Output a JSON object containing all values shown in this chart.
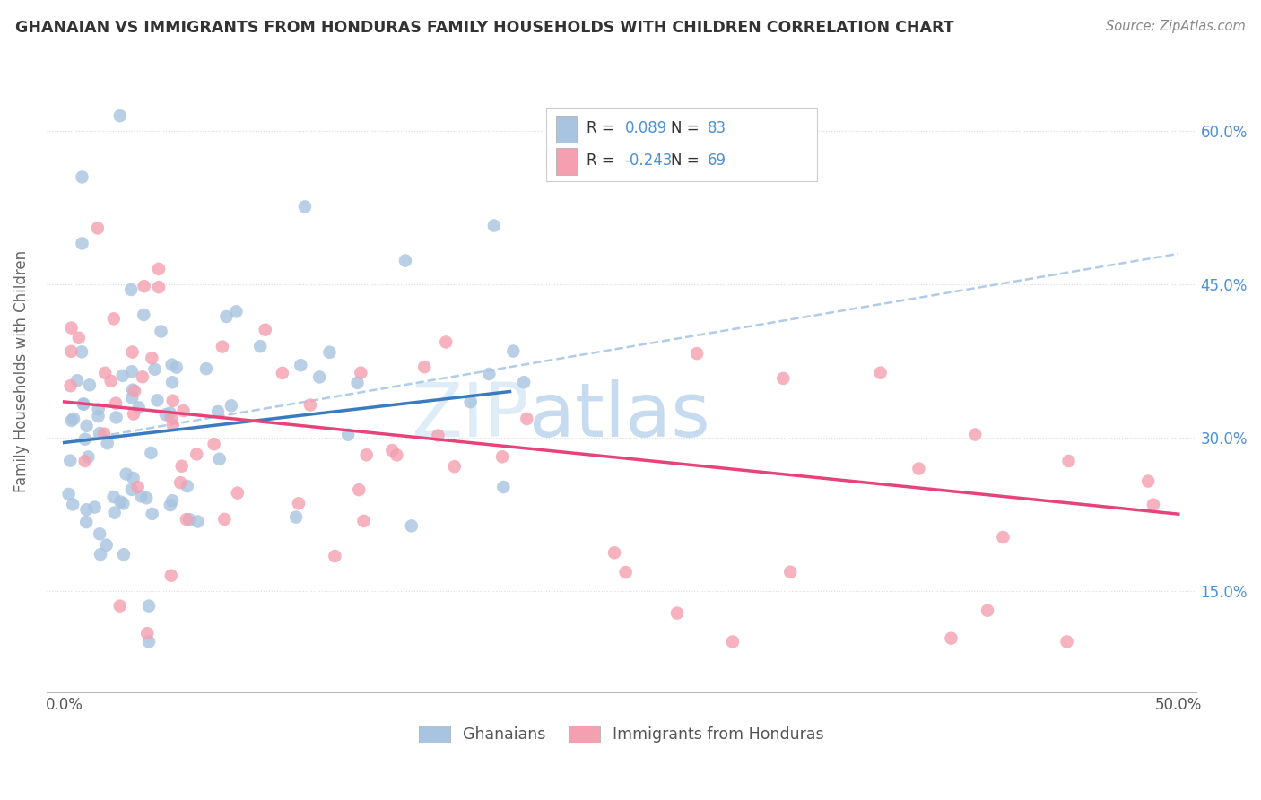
{
  "title": "GHANAIAN VS IMMIGRANTS FROM HONDURAS FAMILY HOUSEHOLDS WITH CHILDREN CORRELATION CHART",
  "source": "Source: ZipAtlas.com",
  "ylabel": "Family Households with Children",
  "y_ticks": [
    "15.0%",
    "30.0%",
    "45.0%",
    "60.0%"
  ],
  "y_tick_vals": [
    0.15,
    0.3,
    0.45,
    0.6
  ],
  "x_lim": [
    0.0,
    0.5
  ],
  "y_lim": [
    0.05,
    0.68
  ],
  "legend_label1": "Ghanaians",
  "legend_label2": "Immigrants from Honduras",
  "R1": 0.089,
  "N1": 83,
  "R2": -0.243,
  "N2": 69,
  "color1": "#a8c4e0",
  "color2": "#f4a0b0",
  "trendline1_color": "#3a7bbf",
  "trendline2_color": "#e8427a",
  "dashed_line_color": "#b0cce8",
  "background_color": "#ffffff",
  "watermark_zip": "ZIP",
  "watermark_atlas": "atlas",
  "trendline1_x0": 0.0,
  "trendline1_y0": 0.295,
  "trendline1_x1": 0.2,
  "trendline1_y1": 0.345,
  "trendline2_x0": 0.0,
  "trendline2_y0": 0.335,
  "trendline2_x1": 0.5,
  "trendline2_y1": 0.225,
  "dashline_x0": 0.0,
  "dashline_y0": 0.295,
  "dashline_x1": 0.5,
  "dashline_y1": 0.48
}
